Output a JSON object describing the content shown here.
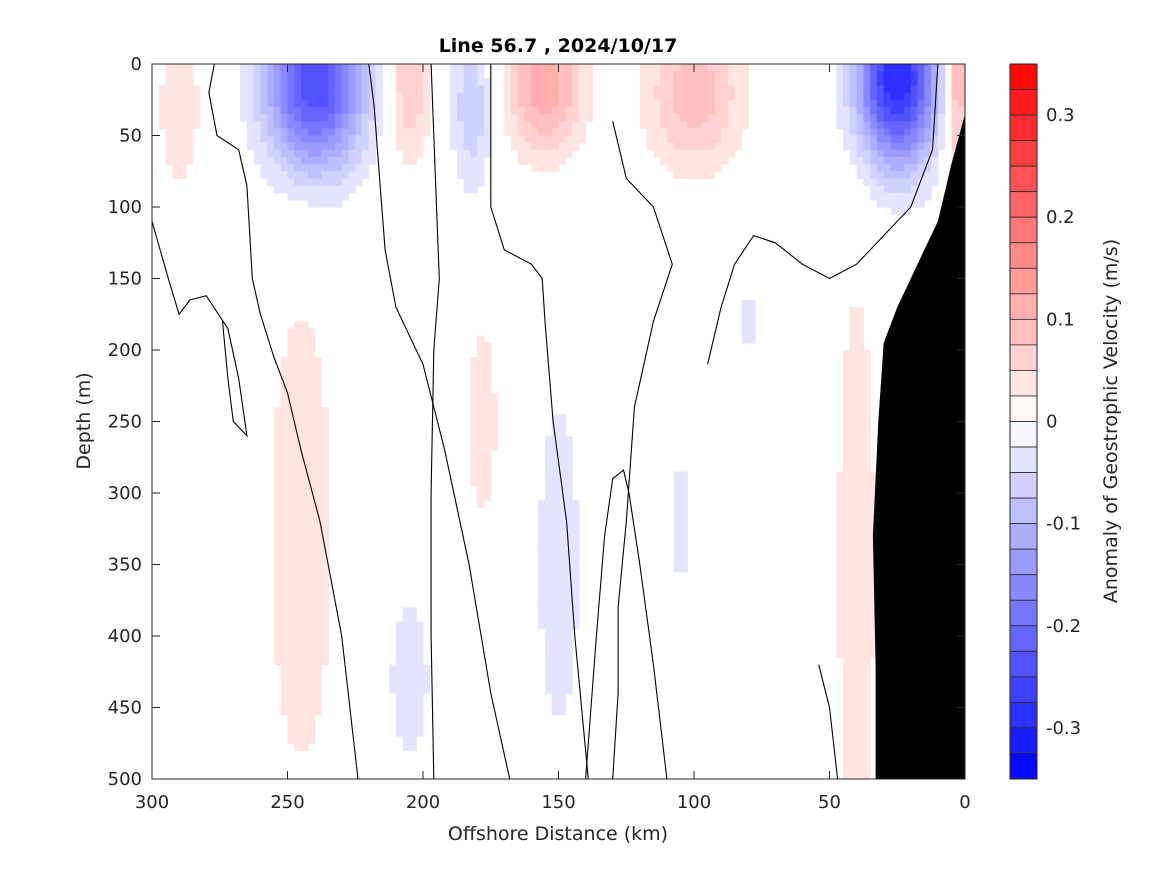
{
  "chart_data": {
    "type": "heatmap",
    "title": "Line 56.7 , 2024/10/17",
    "xlabel": "Offshore Distance (km)",
    "ylabel": "Depth (m)",
    "xlim": [
      300,
      0
    ],
    "ylim": [
      0,
      500
    ],
    "x_reversed": true,
    "y_reversed": true,
    "x_ticks": [
      300,
      250,
      200,
      150,
      100,
      50,
      0
    ],
    "y_ticks": [
      0,
      50,
      100,
      150,
      200,
      250,
      300,
      350,
      400,
      450,
      500
    ],
    "colorbar": {
      "label": "Anomaly of Geostrophic Velocity (m/s)",
      "range": [
        -0.35,
        0.35
      ],
      "step": 0.025,
      "tick_values": [
        0.3,
        0.2,
        0.1,
        0,
        -0.1,
        -0.2,
        -0.3
      ],
      "tick_labels": [
        "0.3",
        "0.2",
        "0.1",
        "0",
        "-0.1",
        "-0.2",
        "-0.3"
      ],
      "positive_color": "#ff0000",
      "negative_color": "#0000ff",
      "zero_color": "#ffffff"
    },
    "features": [
      {
        "sign": "negative",
        "x": 240,
        "depth": 15,
        "peak": -0.25,
        "halfwidth_km": 18,
        "depth_scale_m": 60
      },
      {
        "sign": "positive",
        "x": 205,
        "depth": 10,
        "peak": 0.08,
        "halfwidth_km": 8,
        "depth_scale_m": 60
      },
      {
        "sign": "negative",
        "x": 182,
        "depth": 30,
        "peak": -0.07,
        "halfwidth_km": 8,
        "depth_scale_m": 60
      },
      {
        "sign": "positive",
        "x": 155,
        "depth": 15,
        "peak": 0.12,
        "halfwidth_km": 14,
        "depth_scale_m": 50
      },
      {
        "sign": "positive",
        "x": 100,
        "depth": 20,
        "peak": 0.09,
        "halfwidth_km": 18,
        "depth_scale_m": 55
      },
      {
        "sign": "negative",
        "x": 25,
        "depth": 10,
        "peak": -0.3,
        "halfwidth_km": 15,
        "depth_scale_m": 60
      },
      {
        "sign": "positive",
        "x": 3,
        "depth": 10,
        "peak": 0.12,
        "halfwidth_km": 5,
        "depth_scale_m": 70
      },
      {
        "sign": "positive",
        "x": 290,
        "depth": 30,
        "peak": 0.05,
        "halfwidth_km": 8,
        "depth_scale_m": 60
      },
      {
        "sign": "positive",
        "x": 245,
        "depth": 330,
        "peak": 0.045,
        "halfwidth_km": 14,
        "depth_scale_m": 200
      },
      {
        "sign": "positive",
        "x": 178,
        "depth": 250,
        "peak": 0.045,
        "halfwidth_km": 6,
        "depth_scale_m": 80
      },
      {
        "sign": "negative",
        "x": 150,
        "depth": 350,
        "peak": -0.035,
        "halfwidth_km": 12,
        "depth_scale_m": 180
      },
      {
        "sign": "negative",
        "x": 205,
        "depth": 430,
        "peak": -0.035,
        "halfwidth_km": 11,
        "depth_scale_m": 90
      },
      {
        "sign": "negative",
        "x": 105,
        "depth": 320,
        "peak": -0.03,
        "halfwidth_km": 6,
        "depth_scale_m": 90
      },
      {
        "sign": "negative",
        "x": 80,
        "depth": 180,
        "peak": -0.03,
        "halfwidth_km": 5,
        "depth_scale_m": 40
      },
      {
        "sign": "positive",
        "x": 40,
        "depth": 350,
        "peak": 0.05,
        "halfwidth_km": 8,
        "depth_scale_m": 220
      }
    ],
    "zero_contours": [
      [
        [
          277,
          0
        ],
        [
          279,
          20
        ],
        [
          276,
          50
        ],
        [
          268,
          60
        ],
        [
          265,
          85
        ],
        [
          263,
          150
        ],
        [
          260,
          175
        ],
        [
          255,
          205
        ],
        [
          250,
          230
        ],
        [
          245,
          270
        ],
        [
          238,
          320
        ],
        [
          230,
          400
        ],
        [
          224,
          500
        ]
      ],
      [
        [
          220,
          0
        ],
        [
          218,
          30
        ],
        [
          216,
          80
        ],
        [
          214,
          130
        ],
        [
          210,
          170
        ],
        [
          200,
          210
        ],
        [
          192,
          270
        ],
        [
          183,
          350
        ],
        [
          175,
          440
        ],
        [
          168,
          500
        ]
      ],
      [
        [
          197,
          0
        ],
        [
          196,
          50
        ],
        [
          195,
          100
        ],
        [
          194,
          150
        ],
        [
          196,
          200
        ],
        [
          197,
          300
        ],
        [
          197,
          400
        ],
        [
          196,
          500
        ]
      ],
      [
        [
          175,
          0
        ],
        [
          175,
          50
        ],
        [
          175,
          100
        ],
        [
          170,
          130
        ],
        [
          160,
          140
        ],
        [
          156,
          150
        ],
        [
          155,
          180
        ],
        [
          152,
          250
        ],
        [
          147,
          320
        ],
        [
          144,
          400
        ],
        [
          139,
          500
        ]
      ],
      [
        [
          130,
          40
        ],
        [
          125,
          80
        ],
        [
          115,
          100
        ],
        [
          108,
          140
        ],
        [
          115,
          180
        ],
        [
          122,
          240
        ],
        [
          125,
          320
        ],
        [
          128,
          380
        ],
        [
          128,
          440
        ],
        [
          130,
          500
        ]
      ],
      [
        [
          95,
          210
        ],
        [
          90,
          170
        ],
        [
          85,
          140
        ],
        [
          78,
          120
        ],
        [
          70,
          125
        ],
        [
          60,
          140
        ],
        [
          50,
          150
        ],
        [
          40,
          140
        ],
        [
          30,
          120
        ],
        [
          20,
          100
        ],
        [
          12,
          60
        ],
        [
          10,
          0
        ]
      ],
      [
        [
          54,
          420
        ],
        [
          50,
          450
        ],
        [
          47,
          500
        ]
      ],
      [
        [
          110,
          500
        ],
        [
          115,
          420
        ],
        [
          120,
          350
        ],
        [
          124,
          300
        ],
        [
          126,
          284
        ],
        [
          130,
          290
        ],
        [
          133,
          330
        ],
        [
          136,
          400
        ],
        [
          140,
          500
        ]
      ],
      [
        [
          300,
          110
        ],
        [
          294,
          150
        ],
        [
          290,
          175
        ],
        [
          286,
          165
        ],
        [
          280,
          162
        ],
        [
          272,
          185
        ],
        [
          268,
          220
        ],
        [
          265,
          260
        ],
        [
          270,
          250
        ],
        [
          272,
          220
        ],
        [
          274,
          180
        ]
      ]
    ],
    "bathymetry": [
      [
        0,
        35
      ],
      [
        5,
        70
      ],
      [
        10,
        110
      ],
      [
        15,
        130
      ],
      [
        20,
        150
      ],
      [
        25,
        170
      ],
      [
        30,
        195
      ],
      [
        32,
        250
      ],
      [
        34,
        330
      ],
      [
        33,
        420
      ],
      [
        33,
        500
      ]
    ]
  }
}
